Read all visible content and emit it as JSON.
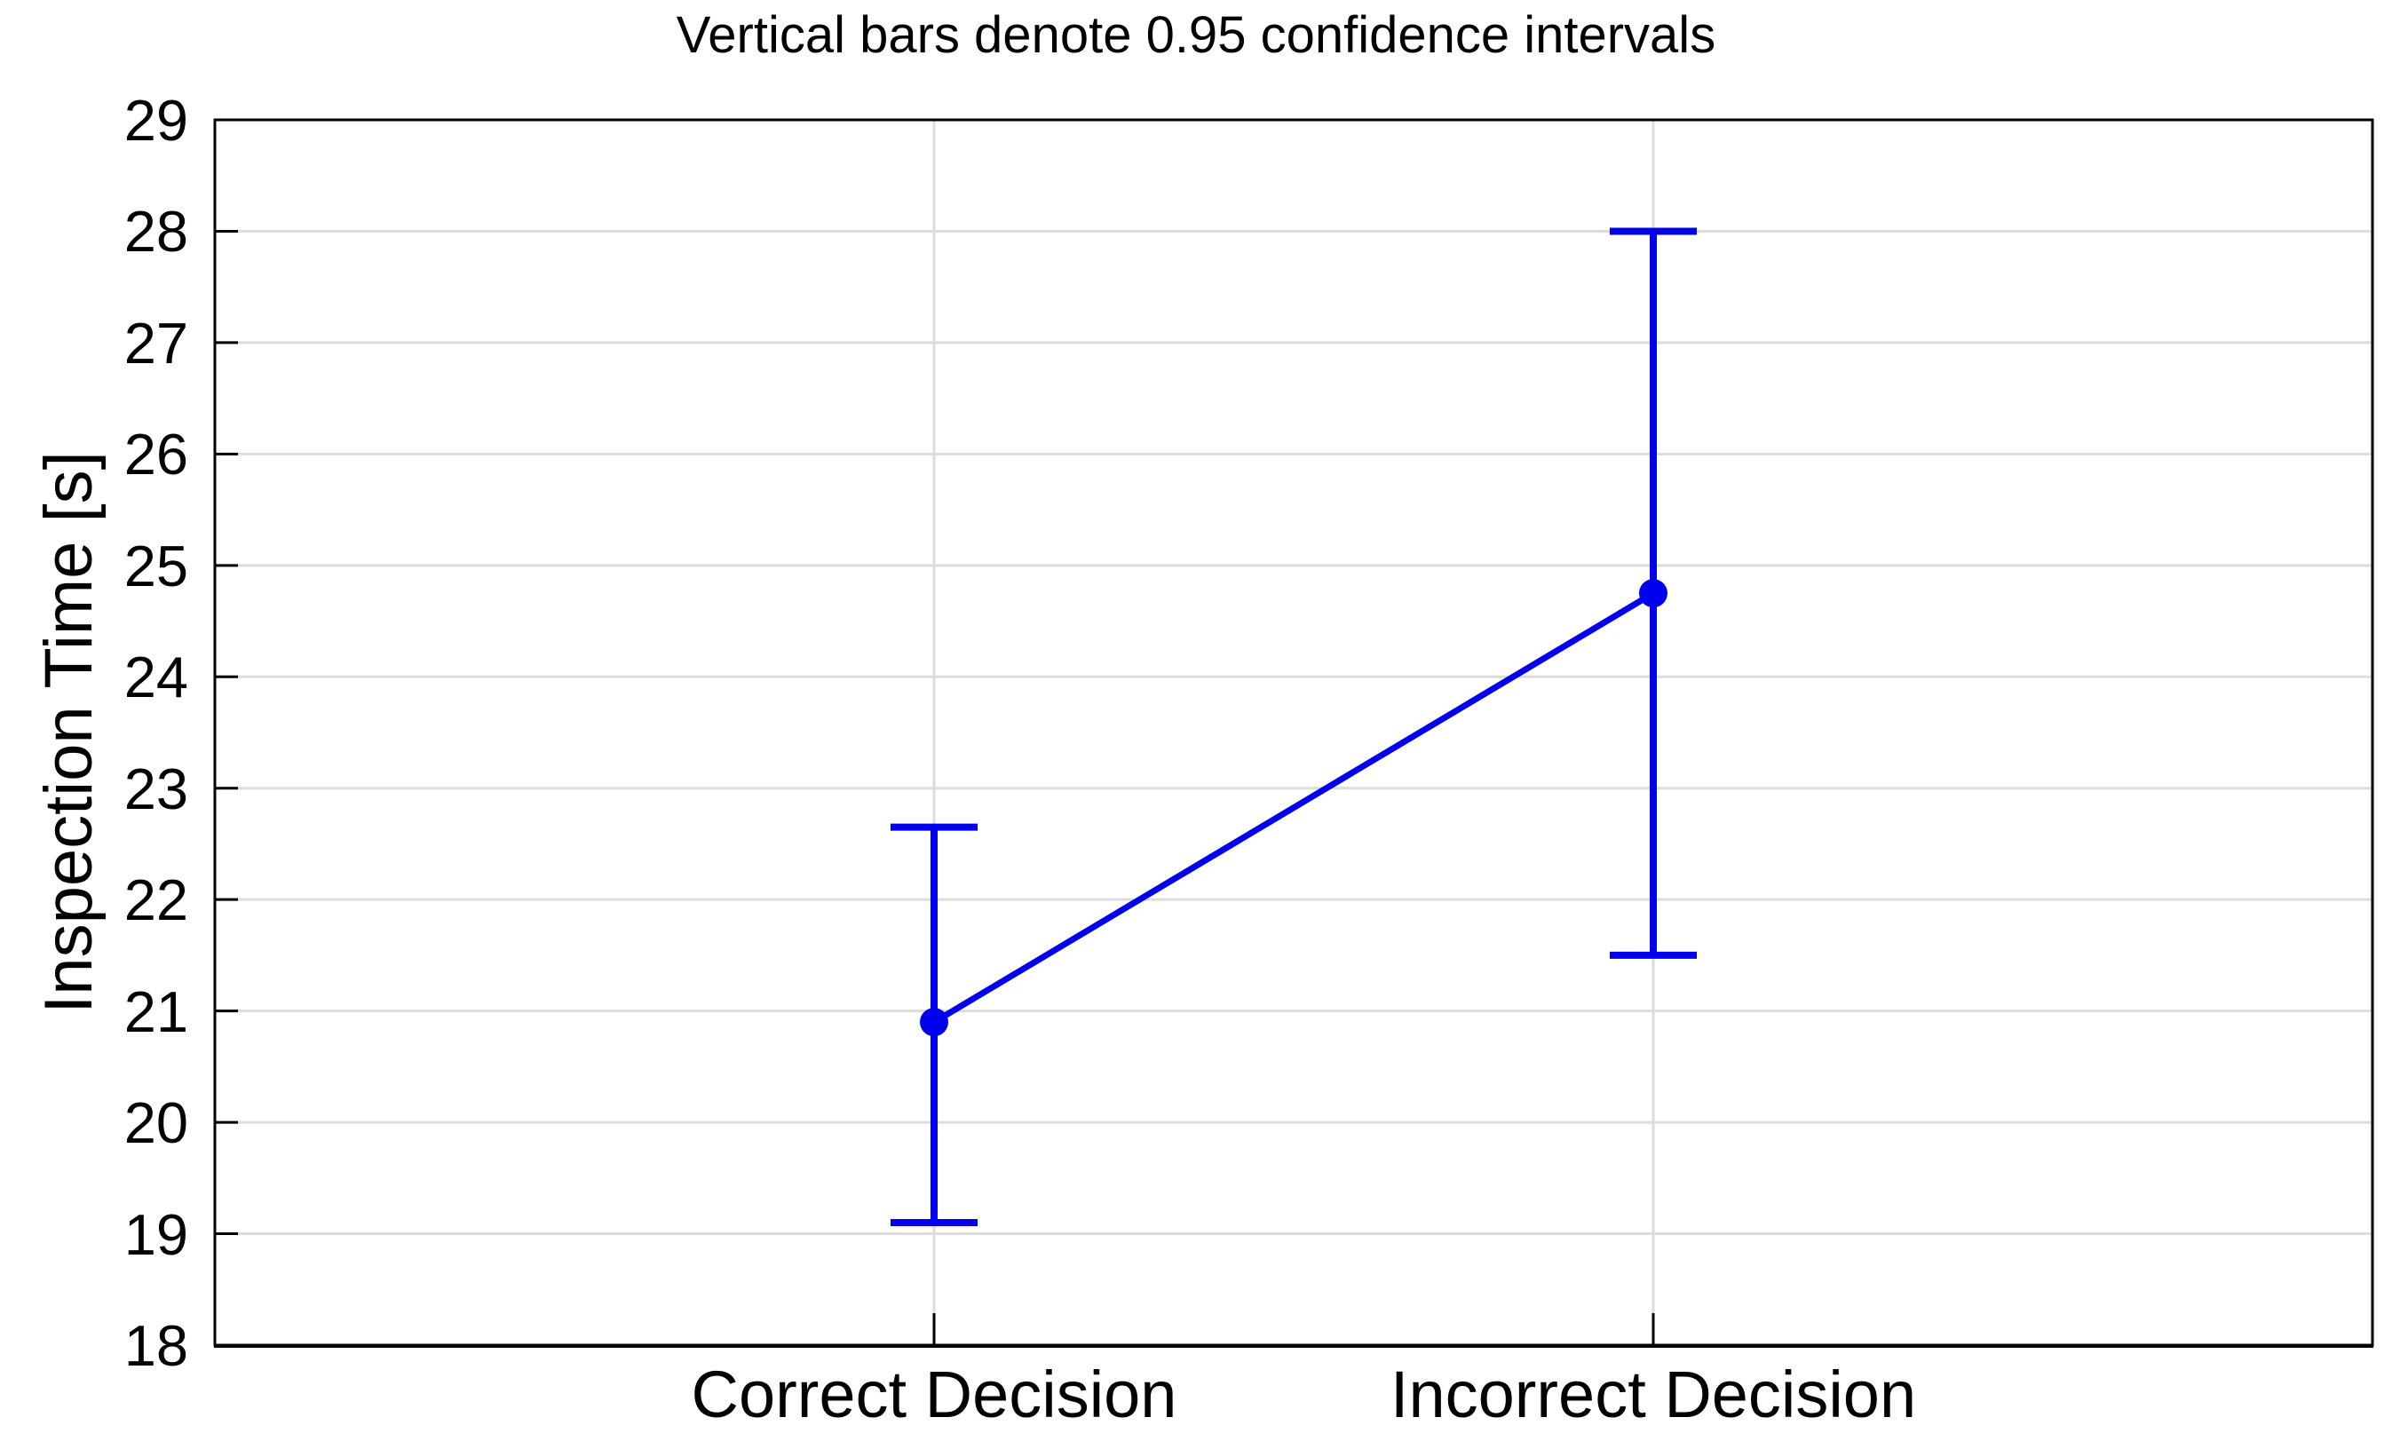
{
  "chart_data": {
    "type": "line",
    "title": "Vertical bars denote 0.95 confidence intervals",
    "xlabel": "",
    "ylabel": "Inspection Time [s]",
    "categories": [
      "Correct Decision",
      "Incorrect Decision"
    ],
    "series": [
      {
        "name": "Inspection Time",
        "values": [
          20.9,
          24.75
        ],
        "ci_low": [
          19.1,
          21.5
        ],
        "ci_high": [
          22.65,
          28.0
        ]
      }
    ],
    "error_bars": "0.95 confidence intervals",
    "ylim": [
      18,
      29
    ],
    "yticks": [
      29,
      28,
      27,
      26,
      25,
      24,
      23,
      22,
      21,
      20,
      19,
      18
    ],
    "grid": {
      "horizontal": true,
      "vertical_at_categories": true
    },
    "legend_position": "none",
    "marker": "filled-circle",
    "colors": {
      "series": "#0000ee",
      "grid": "#dcdcdc",
      "axis": "#000000",
      "text": "#000000",
      "background": "#ffffff"
    }
  }
}
